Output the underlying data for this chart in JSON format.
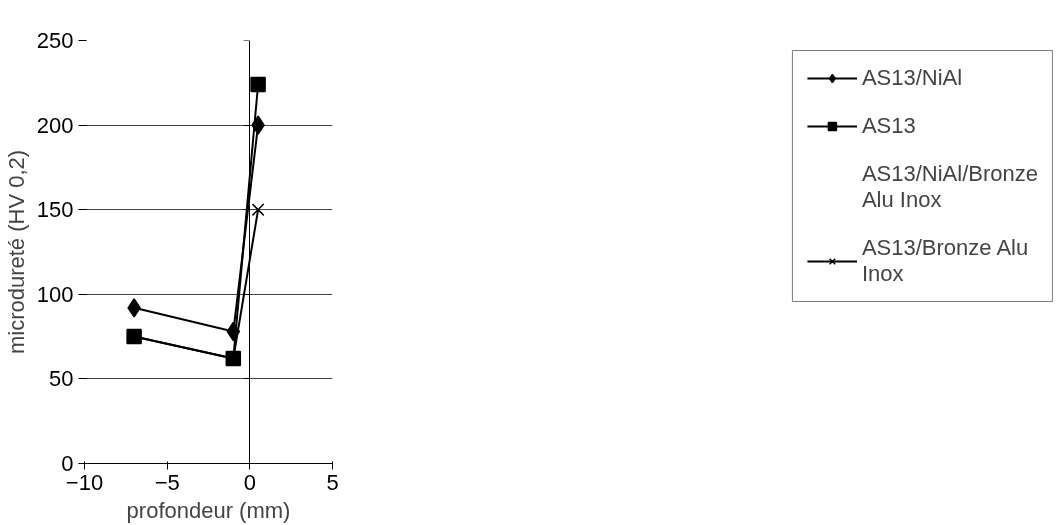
{
  "chart_data": {
    "type": "line",
    "xlabel": "profondeur (mm)",
    "ylabel": "microdureté (HV 0,2)",
    "xlim": [
      -10,
      5
    ],
    "xticks": [
      -10,
      -5,
      0,
      5
    ],
    "ylim": [
      0,
      250
    ],
    "yticks": [
      0,
      50,
      100,
      150,
      200,
      250
    ],
    "grid": "y",
    "legend": "right",
    "series": [
      {
        "name": "AS13/NiAl",
        "color": "#000000",
        "marker": "diamond",
        "line_style": "solid",
        "x": [
          -7,
          -1,
          0.5
        ],
        "values": [
          92,
          78,
          200
        ]
      },
      {
        "name": "AS13",
        "color": "#000000",
        "marker": "square",
        "line_style": "solid",
        "x": [
          -7,
          -1,
          0.5
        ],
        "values": [
          75,
          62,
          224
        ]
      },
      {
        "name": "AS13/NiAl/Bronze Alu Inox",
        "marker": "none"
      },
      {
        "name": "AS13/Bronze Alu Inox",
        "color": "#000000",
        "marker": "cross",
        "line_style": "solid",
        "x": [
          -7,
          -1,
          0.5
        ],
        "values": [
          75,
          62,
          150
        ]
      }
    ]
  }
}
